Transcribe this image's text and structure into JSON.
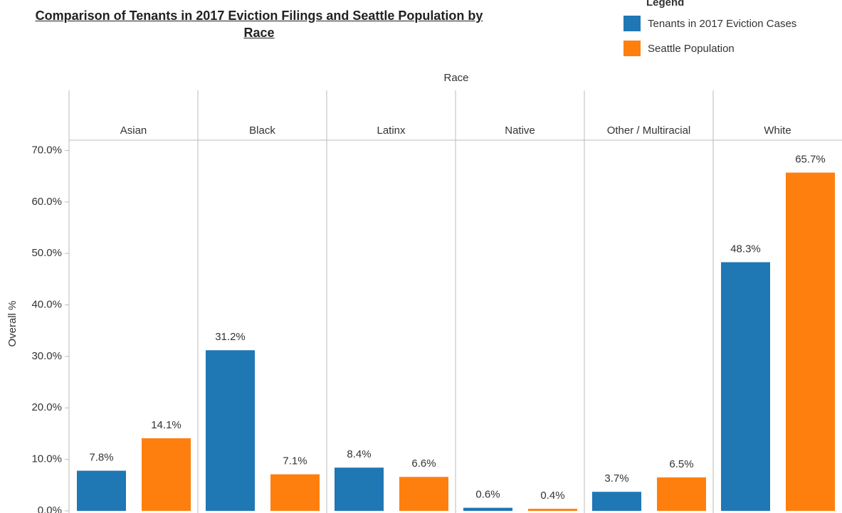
{
  "chart_data": {
    "type": "bar",
    "title": "Comparison of Tenants in 2017 Eviction Filings and Seattle Population by Race",
    "legend_title": "Legend",
    "x_label": "Race",
    "y_label": "Overall %",
    "categories": [
      "Asian",
      "Black",
      "Latinx",
      "Native",
      "Other / Multiracial",
      "White"
    ],
    "series": [
      {
        "name": "Tenants in 2017 Eviction Cases",
        "color": "#1f77b4",
        "values": [
          7.8,
          31.2,
          8.4,
          0.6,
          3.7,
          48.3
        ],
        "value_labels": [
          "7.8%",
          "31.2%",
          "8.4%",
          "0.6%",
          "3.7%",
          "48.3%"
        ]
      },
      {
        "name": "Seattle Population",
        "color": "#ff7f0e",
        "values": [
          14.1,
          7.1,
          6.6,
          0.4,
          6.5,
          65.7
        ],
        "value_labels": [
          "14.1%",
          "7.1%",
          "6.6%",
          "0.4%",
          "6.5%",
          "65.7%"
        ]
      }
    ],
    "ylim": [
      0,
      72
    ],
    "yticks": [
      {
        "value": 0,
        "label": "0.0%"
      },
      {
        "value": 10,
        "label": "10.0%"
      },
      {
        "value": 20,
        "label": "20.0%"
      },
      {
        "value": 30,
        "label": "30.0%"
      },
      {
        "value": 40,
        "label": "40.0%"
      },
      {
        "value": 50,
        "label": "50.0%"
      },
      {
        "value": 60,
        "label": "60.0%"
      },
      {
        "value": 70,
        "label": "70.0%"
      }
    ],
    "legend_position": "top-right"
  }
}
